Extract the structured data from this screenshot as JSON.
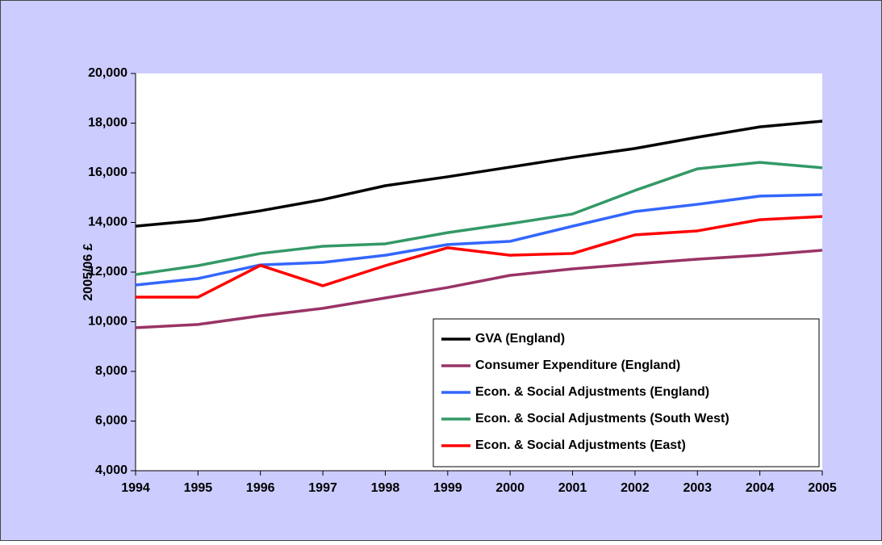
{
  "chart_data": {
    "type": "line",
    "y_label": "2005/06 £",
    "categories": [
      "1994",
      "1995",
      "1996",
      "1997",
      "1998",
      "1999",
      "2000",
      "2001",
      "2002",
      "2003",
      "2004",
      "2005"
    ],
    "series": [
      {
        "name": "GVA (England)",
        "color": "#000000",
        "values": [
          13850,
          14080,
          14470,
          14920,
          15480,
          15840,
          16230,
          16620,
          16980,
          17430,
          17850,
          18080
        ]
      },
      {
        "name": "Consumer Expenditure (England)",
        "color": "#993366",
        "values": [
          9760,
          9890,
          10240,
          10540,
          10960,
          11380,
          11870,
          12130,
          12330,
          12520,
          12680,
          12880
        ]
      },
      {
        "name": "Econ. & Social Adjustments (England)",
        "color": "#3366ff",
        "values": [
          11480,
          11740,
          12290,
          12390,
          12680,
          13110,
          13240,
          13850,
          14440,
          14730,
          15060,
          15120
        ]
      },
      {
        "name": "Econ. & Social Adjustments (South West)",
        "color": "#339966",
        "values": [
          11900,
          12260,
          12750,
          13040,
          13140,
          13590,
          13950,
          14340,
          15290,
          16160,
          16420,
          16200
        ]
      },
      {
        "name": "Econ. & Social Adjustments (East)",
        "color": "#ff0000",
        "values": [
          10990,
          10990,
          12270,
          11450,
          12260,
          12980,
          12680,
          12750,
          13500,
          13660,
          14110,
          14240
        ]
      }
    ],
    "ylim": [
      4000,
      20000
    ],
    "yticks": [
      {
        "value": 4000,
        "label": "4,000"
      },
      {
        "value": 6000,
        "label": "6,000"
      },
      {
        "value": 8000,
        "label": "8,000"
      },
      {
        "value": 10000,
        "label": "10,000"
      },
      {
        "value": 12000,
        "label": "12,000"
      },
      {
        "value": 14000,
        "label": "14,000"
      },
      {
        "value": 16000,
        "label": "16,000"
      },
      {
        "value": 18000,
        "label": "18,000"
      },
      {
        "value": 20000,
        "label": "20,000"
      }
    ],
    "grid": false,
    "legend_position": "lower right"
  }
}
